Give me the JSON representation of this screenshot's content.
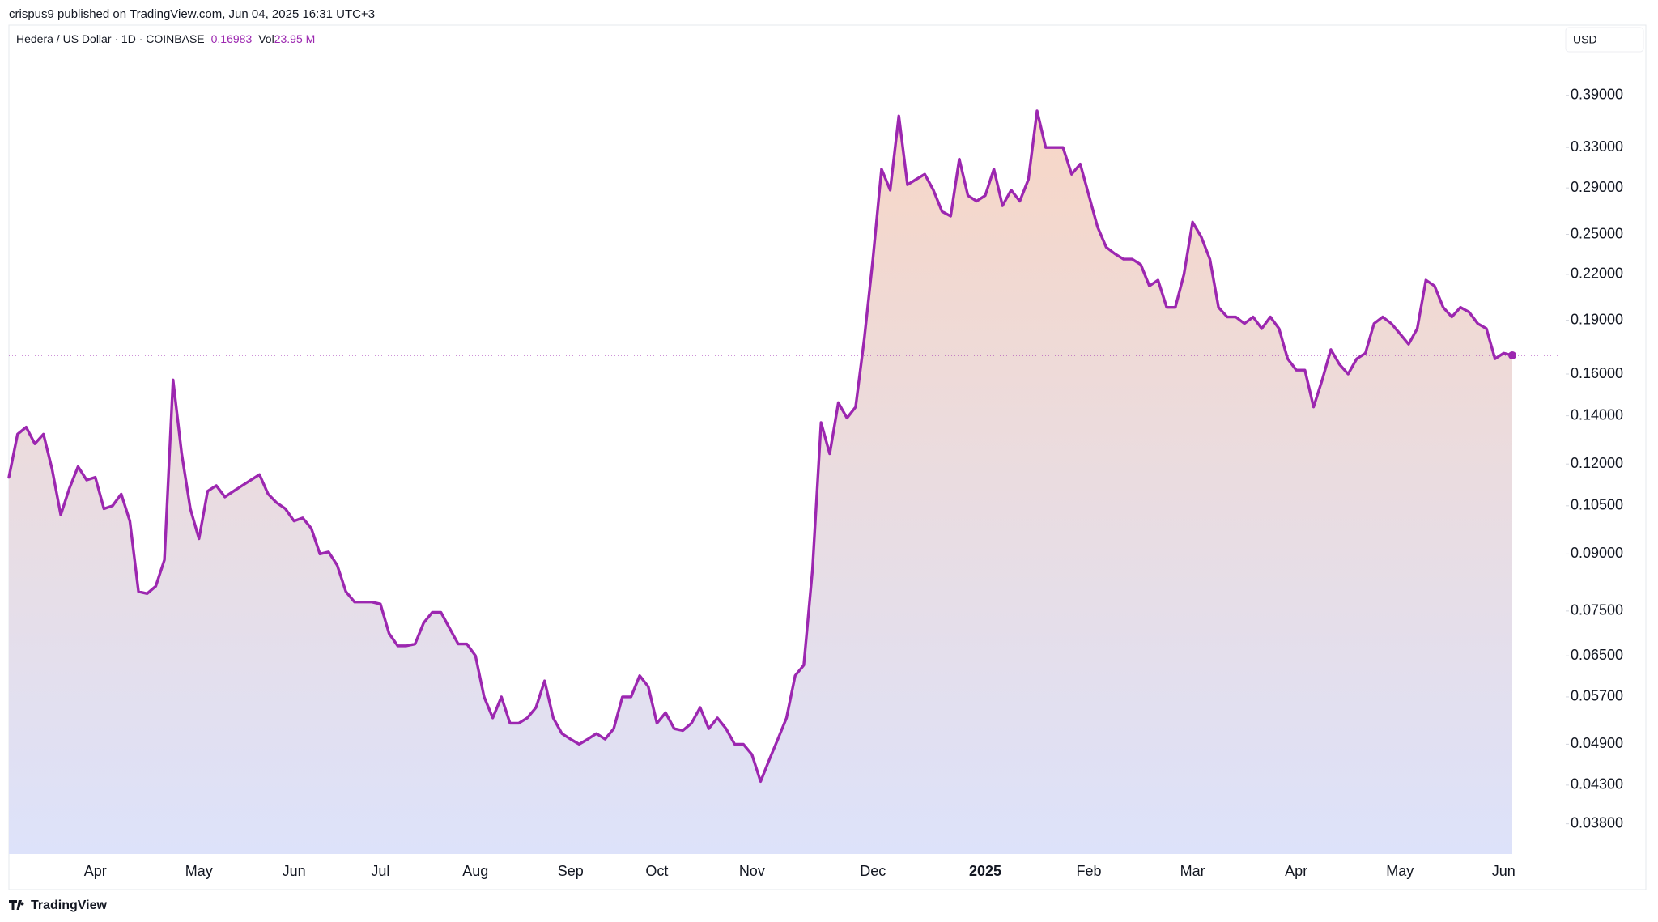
{
  "attribution": "crispus9 published on TradingView.com, Jun 04, 2025 16:31 UTC+3",
  "footer": "TradingView",
  "chart_data": {
    "type": "line",
    "title": "Hedera / US Dollar · 1D · COINBASE",
    "last_price": 0.16983,
    "volume_label": "Vol",
    "volume": "23.95 M",
    "currency": "USD",
    "color": "#9c27b0",
    "fill_colors": [
      "#f7d6c6",
      "#dde2fa"
    ],
    "log_scale": true,
    "ylim": [
      0.0345,
      0.488
    ],
    "yticks": [
      {
        "value": 0.39,
        "label": "0.39000"
      },
      {
        "value": 0.33,
        "label": "0.33000"
      },
      {
        "value": 0.29,
        "label": "0.29000"
      },
      {
        "value": 0.25,
        "label": "0.25000"
      },
      {
        "value": 0.22,
        "label": "0.22000"
      },
      {
        "value": 0.19,
        "label": "0.19000"
      },
      {
        "value": 0.16,
        "label": "0.16000"
      },
      {
        "value": 0.14,
        "label": "0.14000"
      },
      {
        "value": 0.12,
        "label": "0.12000"
      },
      {
        "value": 0.105,
        "label": "0.10500"
      },
      {
        "value": 0.09,
        "label": "0.09000"
      },
      {
        "value": 0.075,
        "label": "0.07500"
      },
      {
        "value": 0.065,
        "label": "0.06500"
      },
      {
        "value": 0.057,
        "label": "0.05700"
      },
      {
        "value": 0.049,
        "label": "0.04900"
      },
      {
        "value": 0.043,
        "label": "0.04300"
      },
      {
        "value": 0.038,
        "label": "0.03800"
      }
    ],
    "categories": [
      null,
      null,
      null,
      null,
      null,
      null,
      null,
      null,
      null,
      null,
      "Apr",
      null,
      null,
      null,
      null,
      null,
      null,
      null,
      null,
      null,
      null,
      null,
      "May",
      null,
      null,
      null,
      null,
      null,
      null,
      null,
      null,
      null,
      null,
      "Jun",
      null,
      null,
      null,
      null,
      null,
      null,
      null,
      null,
      null,
      "Jul",
      null,
      null,
      null,
      null,
      null,
      null,
      null,
      null,
      null,
      null,
      "Aug",
      null,
      null,
      null,
      null,
      null,
      null,
      null,
      null,
      null,
      null,
      "Sep",
      null,
      null,
      null,
      null,
      null,
      null,
      null,
      null,
      null,
      "Oct",
      null,
      null,
      null,
      null,
      null,
      null,
      null,
      null,
      null,
      null,
      "Nov",
      null,
      null,
      null,
      null,
      null,
      null,
      null,
      null,
      null,
      null,
      null,
      null,
      null,
      "Dec",
      null,
      null,
      null,
      null,
      null,
      null,
      null,
      null,
      null,
      null,
      null,
      null,
      "2025",
      null,
      null,
      null,
      null,
      null,
      null,
      null,
      null,
      null,
      null,
      null,
      "Feb",
      null,
      null,
      null,
      null,
      null,
      null,
      null,
      null,
      null,
      null,
      null,
      "Mar",
      null,
      null,
      null,
      null,
      null,
      null,
      null,
      null,
      null,
      null,
      null,
      "Apr",
      null,
      null,
      null,
      null,
      null,
      null,
      null,
      null,
      null,
      null,
      null,
      "May",
      null,
      null,
      null,
      null,
      null,
      null,
      null,
      null,
      null,
      null,
      null,
      "Jun",
      null
    ],
    "values": [
      0.115,
      0.132,
      0.135,
      0.128,
      0.132,
      0.118,
      0.102,
      0.111,
      0.119,
      0.114,
      0.115,
      0.104,
      0.105,
      0.109,
      0.1,
      0.0798,
      0.0793,
      0.0812,
      0.0883,
      0.157,
      0.124,
      0.104,
      0.0945,
      0.11,
      0.112,
      0.108,
      0.11,
      0.112,
      0.114,
      0.116,
      0.109,
      0.106,
      0.104,
      0.1,
      0.101,
      0.0977,
      0.09,
      0.0906,
      0.0868,
      0.0798,
      0.0772,
      0.0772,
      0.0772,
      0.0767,
      0.0698,
      0.0671,
      0.0671,
      0.0675,
      0.0722,
      0.0747,
      0.0747,
      0.071,
      0.0675,
      0.0675,
      0.065,
      0.057,
      0.0533,
      0.057,
      0.0524,
      0.0524,
      0.0533,
      0.0551,
      0.06,
      0.0533,
      0.0507,
      0.0498,
      0.049,
      0.0498,
      0.0507,
      0.0498,
      0.0515,
      0.057,
      0.057,
      0.061,
      0.0589,
      0.0524,
      0.0542,
      0.0515,
      0.0512,
      0.0524,
      0.0551,
      0.0515,
      0.0533,
      0.0515,
      0.049,
      0.049,
      0.0474,
      0.0435,
      0.0466,
      0.0498,
      0.0533,
      0.061,
      0.0631,
      0.0854,
      0.137,
      0.124,
      0.146,
      0.139,
      0.144,
      0.179,
      0.231,
      0.308,
      0.288,
      0.365,
      0.293,
      0.298,
      0.303,
      0.288,
      0.269,
      0.265,
      0.318,
      0.283,
      0.278,
      0.283,
      0.308,
      0.274,
      0.288,
      0.278,
      0.298,
      0.371,
      0.33,
      0.33,
      0.33,
      0.303,
      0.313,
      0.283,
      0.256,
      0.24,
      0.235,
      0.231,
      0.231,
      0.227,
      0.212,
      0.216,
      0.198,
      0.198,
      0.22,
      0.26,
      0.248,
      0.231,
      0.198,
      0.192,
      0.192,
      0.188,
      0.192,
      0.185,
      0.192,
      0.185,
      0.168,
      0.162,
      0.162,
      0.144,
      0.157,
      0.173,
      0.165,
      0.16,
      0.168,
      0.171,
      0.188,
      0.192,
      0.188,
      0.182,
      0.176,
      0.185,
      0.216,
      0.212,
      0.198,
      0.192,
      0.198,
      0.195,
      0.188,
      0.185,
      0.168,
      0.171,
      0.16983
    ]
  }
}
